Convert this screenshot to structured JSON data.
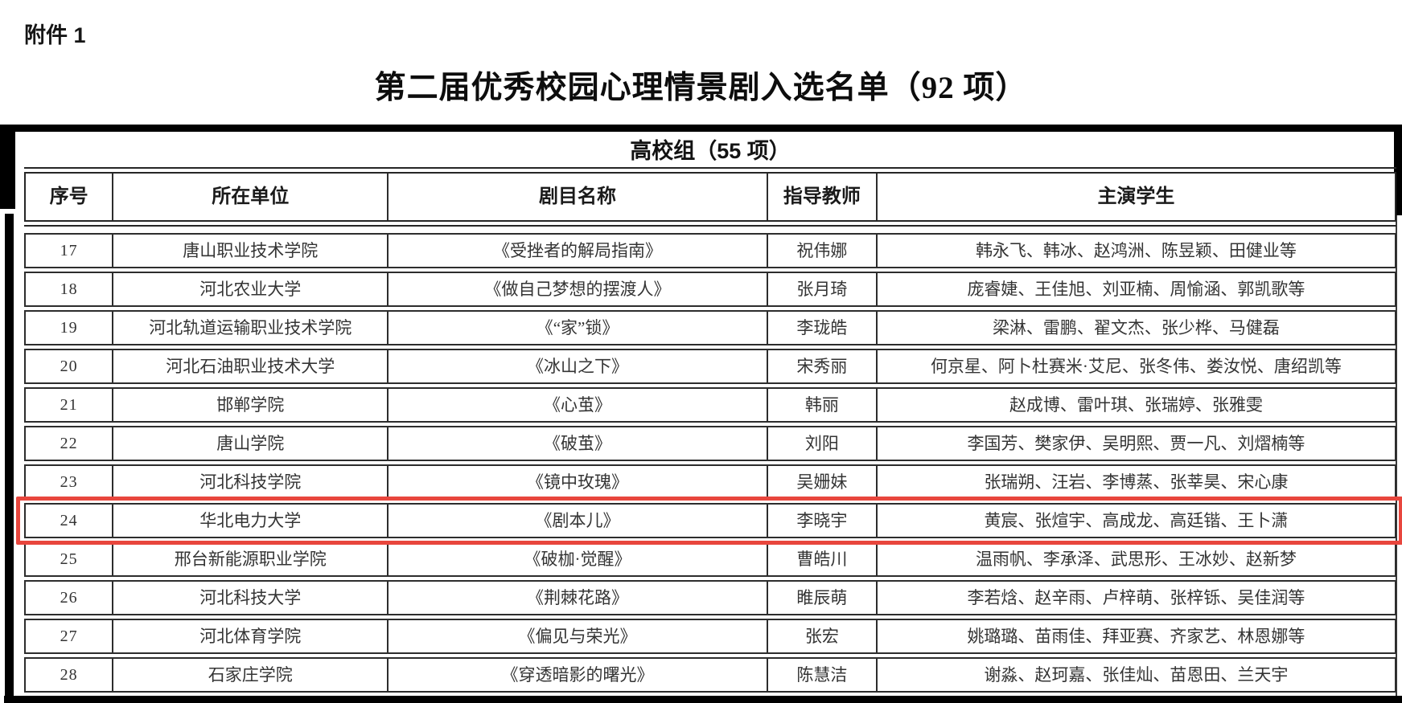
{
  "page": {
    "attachment_label": "附件 1",
    "title": "第二届优秀校园心理情景剧入选名单（92 项）"
  },
  "table": {
    "subtitle": "高校组（55 项）",
    "columns": {
      "no": "序号",
      "org": "所在单位",
      "play": "剧目名称",
      "teacher": "指导教师",
      "students": "主演学生"
    },
    "highlight_color": "#e8463d",
    "highlighted_row_no": "24",
    "rows": [
      {
        "no": "17",
        "org": "唐山职业技术学院",
        "play": "《受挫者的解局指南》",
        "teacher": "祝伟娜",
        "students": "韩永飞、韩冰、赵鸿洲、陈昱颖、田健业等"
      },
      {
        "no": "18",
        "org": "河北农业大学",
        "play": "《做自己梦想的摆渡人》",
        "teacher": "张月琦",
        "students": "庞睿婕、王佳旭、刘亚楠、周愉涵、郭凯歌等"
      },
      {
        "no": "19",
        "org": "河北轨道运输职业技术学院",
        "play": "《“家”锁》",
        "teacher": "李珑皓",
        "students": "梁淋、雷鹏、翟文杰、张少桦、马健磊"
      },
      {
        "no": "20",
        "org": "河北石油职业技术大学",
        "play": "《冰山之下》",
        "teacher": "宋秀丽",
        "students": "何京星、阿卜杜赛米·艾尼、张冬伟、娄汝悦、唐绍凯等"
      },
      {
        "no": "21",
        "org": "邯郸学院",
        "play": "《心茧》",
        "teacher": "韩丽",
        "students": "赵成博、雷叶琪、张瑞婷、张雅雯"
      },
      {
        "no": "22",
        "org": "唐山学院",
        "play": "《破茧》",
        "teacher": "刘阳",
        "students": "李国芳、樊家伊、吴明熙、贾一凡、刘熠楠等"
      },
      {
        "no": "23",
        "org": "河北科技学院",
        "play": "《镜中玫瑰》",
        "teacher": "吴姗妹",
        "students": "张瑞朔、汪岩、李博蒸、张莘昊、宋心康"
      },
      {
        "no": "24",
        "org": "华北电力大学",
        "play": "《剧本儿》",
        "teacher": "李晓宇",
        "students": "黄宸、张煊宇、高成龙、高廷锴、王卜潇"
      },
      {
        "no": "25",
        "org": "邢台新能源职业学院",
        "play": "《破枷·觉醒》",
        "teacher": "曹皓川",
        "students": "温雨帆、李承泽、武思形、王冰妙、赵新梦"
      },
      {
        "no": "26",
        "org": "河北科技大学",
        "play": "《荆棘花路》",
        "teacher": "睢辰萌",
        "students": "李若焓、赵辛雨、卢梓萌、张梓铄、吴佳润等"
      },
      {
        "no": "27",
        "org": "河北体育学院",
        "play": "《偏见与荣光》",
        "teacher": "张宏",
        "students": "姚璐璐、苗雨佳、拜亚赛、齐家艺、林恩娜等"
      },
      {
        "no": "28",
        "org": "石家庄学院",
        "play": "《穿透暗影的曙光》",
        "teacher": "陈慧洁",
        "students": "谢淼、赵珂嘉、张佳灿、苗恩田、兰天宇"
      }
    ]
  }
}
